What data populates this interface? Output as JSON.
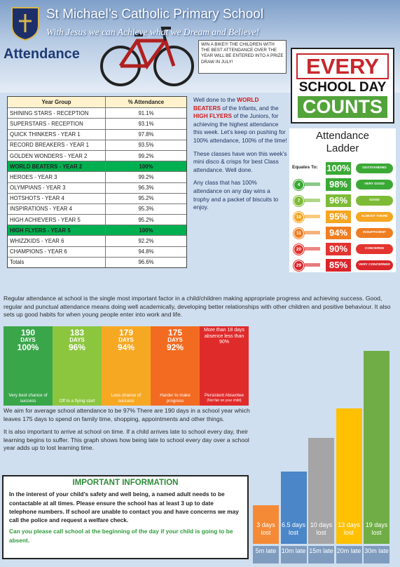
{
  "header": {
    "title": "St Michael’s Catholic Primary School",
    "motto": "With Jesus we can Achieve what we Dream and Believe!"
  },
  "heading": "Attendance",
  "prize_note": "WIN A BIKE!!! THE CHILDREN WITH THE BEST ATTENDANCE OVER THE YEAR WILL BE ENTERED INTO A PRIZE DRAW IN JULY!",
  "poster": {
    "line1": "EVERY",
    "line2": "SCHOOL DAY",
    "line3": "COUNTS"
  },
  "table": {
    "header": [
      "Year Group",
      "% Attendance"
    ],
    "rows": [
      [
        "SHINING STARS - RECEPTION",
        "91.1%"
      ],
      [
        "SUPERSTARS - RECEPTION",
        "93.1%"
      ],
      [
        "QUICK THINKERS - YEAR 1",
        "97.8%"
      ],
      [
        "RECORD BREAKERS - YEAR 1",
        "93.5%"
      ],
      [
        "GOLDEN WONDERS - YEAR 2",
        "99.2%"
      ],
      [
        "WORLD BEATERS - YEAR 2",
        "100%"
      ],
      [
        "HEROES - YEAR 3",
        "99.2%"
      ],
      [
        "OLYMPIANS - YEAR 3",
        "96.3%"
      ],
      [
        "HOTSHOTS - YEAR 4",
        "95.2%"
      ],
      [
        "INSPIRATIONS - YEAR 4",
        "95.3%"
      ],
      [
        "HIGH ACHIEVERS - YEAR 5",
        "95.2%"
      ],
      [
        "HIGH FLYERS - YEAR 5",
        "100%"
      ],
      [
        "WHIZZKIDS - YEAR 6",
        "92.2%"
      ],
      [
        "CHAMPIONS - YEAR 6",
        "94.8%"
      ]
    ],
    "highlight_rows": [
      5,
      11
    ],
    "totals": [
      "Totals",
      "96.6%"
    ]
  },
  "news": {
    "para1": [
      "Well done to the ",
      "WORLD BEATERS",
      " of the Infants, and the ",
      "HIGH FLYERS",
      " of the Juniors, for achieving the highest attendance this week. Let’s keep on pushing for 100% attendance, 100% of the time!"
    ],
    "para2": "These classes have won this week’s mini disco & crisps for best Class attendance. Well done.",
    "para3": "Any class that has 100% attendance on any day wins a trophy and a packet of biscuits to enjoy."
  },
  "ladder": {
    "title": "Attendance Ladder",
    "equates": "Equates To:",
    "rungs": [
      {
        "percent": "100%",
        "label": "OUTSTANDING",
        "color": "#3aa935"
      },
      {
        "missed": 4,
        "percent": "98%",
        "label": "VERY GOOD",
        "color": "#3aa935"
      },
      {
        "missed": 7,
        "percent": "96%",
        "label": "GOOD",
        "color": "#7dbb36"
      },
      {
        "missed": 10,
        "percent": "95%",
        "label": "ALMOST THERE",
        "color": "#f5a623"
      },
      {
        "missed": 11,
        "percent": "94%",
        "label": "INSUFFICIENT",
        "color": "#ef7d22"
      },
      {
        "missed": 20,
        "percent": "90%",
        "label": "CONCERNS",
        "color": "#e3342f"
      },
      {
        "missed": 29,
        "percent": "85%",
        "label": "VERY CONCERNED",
        "color": "#d9252a"
      }
    ]
  },
  "intro": "Regular attendance at school is the single most important factor in a child/children making appropriate progress and achieving success. Good, regular and punctual attendance means doing well academically, developing better relationships with other children and positive behaviour. It also sets up good habits for when young people enter into work and life.",
  "smileys": [
    {
      "days": 190,
      "unit": "DAYS",
      "percent": "100%",
      "caption": "Very best chance of success",
      "color": "#3aa64a"
    },
    {
      "days": 183,
      "unit": "DAYS",
      "percent": "96%",
      "caption": "Off to a flying start",
      "color": "#8cc63f"
    },
    {
      "days": 179,
      "unit": "DAYS",
      "percent": "94%",
      "caption": "Less chance of success",
      "color": "#f7a823"
    },
    {
      "days": 175,
      "unit": "DAYS",
      "percent": "92%",
      "caption": "Harder to make progress",
      "color": "#f26b21"
    },
    {
      "top": "More than 18 days absence less than 90%",
      "caption": "Persistent Absentee",
      "note": "(Not fair on your child)",
      "color": "#e02b2b"
    }
  ],
  "body": [
    "We aim for average school attendance to be 97% There are 190 days in a school year which leaves 175 days to spend on family time, shopping, appointments and other things.",
    "It is also important to arrive at school on time. If a child arrives late to school every day, their learning begins to suffer. This graph shows how being late to school every day over a school year adds up to lost learning time."
  ],
  "important": {
    "title": "IMPORTANT INFORMATION",
    "text": "In the interest of your child’s safety and well being, a named adult needs to be contactable at all times. Please ensure the school has at least 3 up to date telephone numbers. If school are unable to contact you and have concerns we may call the police and request a welfare check.",
    "note": "Can you please call school at the beginning of the day if your child is going to be absent."
  },
  "late_chart": {
    "bars": [
      {
        "days": 3,
        "label": "3 days lost",
        "late": "5m late",
        "color": "#f58a36"
      },
      {
        "days": 6.5,
        "label": "6.5 days lost",
        "late": "10m late",
        "color": "#4a86c8"
      },
      {
        "days": 10,
        "label": "10 days lost",
        "late": "15m late",
        "color": "#a5a5a5"
      },
      {
        "days": 13,
        "label": "13 days lost",
        "late": "20m late",
        "color": "#ffc000"
      },
      {
        "days": 19,
        "label": "19 days lost",
        "late": "30m late",
        "color": "#70ad47"
      }
    ]
  }
}
